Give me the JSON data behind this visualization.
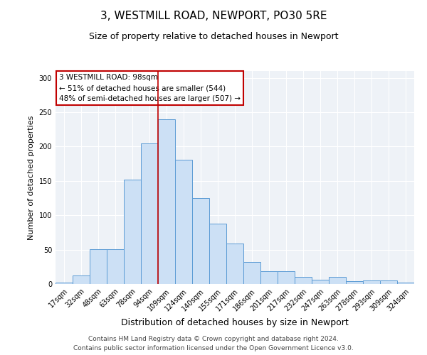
{
  "title1": "3, WESTMILL ROAD, NEWPORT, PO30 5RE",
  "title2": "Size of property relative to detached houses in Newport",
  "xlabel": "Distribution of detached houses by size in Newport",
  "ylabel": "Number of detached properties",
  "categories": [
    "17sqm",
    "32sqm",
    "48sqm",
    "63sqm",
    "78sqm",
    "94sqm",
    "109sqm",
    "124sqm",
    "140sqm",
    "155sqm",
    "171sqm",
    "186sqm",
    "201sqm",
    "217sqm",
    "232sqm",
    "247sqm",
    "263sqm",
    "278sqm",
    "293sqm",
    "309sqm",
    "324sqm"
  ],
  "values": [
    2,
    12,
    51,
    51,
    152,
    205,
    240,
    181,
    125,
    88,
    59,
    32,
    19,
    19,
    10,
    6,
    10,
    4,
    5,
    5,
    2
  ],
  "bar_color": "#cce0f5",
  "bar_edge_color": "#5b9bd5",
  "vline_x": 5.5,
  "vline_color": "#c00000",
  "annotation_text": "3 WESTMILL ROAD: 98sqm\n← 51% of detached houses are smaller (544)\n48% of semi-detached houses are larger (507) →",
  "annotation_box_color": "#ffffff",
  "annotation_box_edge": "#c00000",
  "footer_line1": "Contains HM Land Registry data © Crown copyright and database right 2024.",
  "footer_line2": "Contains public sector information licensed under the Open Government Licence v3.0.",
  "ylim": [
    0,
    310
  ],
  "background_color": "#eef2f7",
  "title1_fontsize": 11,
  "title2_fontsize": 9,
  "xlabel_fontsize": 9,
  "ylabel_fontsize": 8,
  "tick_fontsize": 7,
  "annotation_fontsize": 7.5,
  "footer_fontsize": 6.5
}
